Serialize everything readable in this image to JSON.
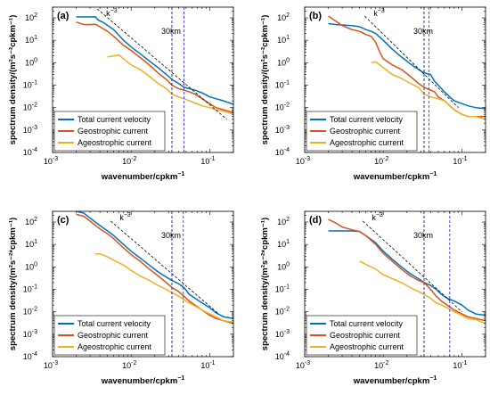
{
  "figure": {
    "colors": {
      "total": "#0072BD",
      "geo": "#D95319",
      "ageo": "#EDB120",
      "slope_line": "#000000",
      "line_30km": "#1a1a80",
      "line_blue": "#3b3bff"
    }
  },
  "chart_data": [
    {
      "type": "line",
      "panel_label": "(a)",
      "xlabel": "wavenumber/cpkm",
      "xlabel_sup": "−1",
      "ylabel": "spectrum density/(m²s⁻²cpkm⁻¹)",
      "x_scale": "log",
      "y_scale": "log",
      "xlim": [
        0.001,
        0.2
      ],
      "ylim": [
        0.0001,
        300
      ],
      "x_ticks": [
        0.001,
        0.01,
        0.1
      ],
      "x_tick_labels": [
        "10",
        "10",
        "10"
      ],
      "x_tick_exponents": [
        "-3",
        "-2",
        "-1"
      ],
      "y_ticks": [
        0.0001,
        0.001,
        0.01,
        0.1,
        1,
        10,
        100
      ],
      "y_tick_labels": [
        "10",
        "10",
        "10",
        "10",
        "10",
        "10",
        "10"
      ],
      "y_tick_exponents": [
        "-4",
        "-3",
        "-2",
        "-1",
        "0",
        "1",
        "2"
      ],
      "slope_label": "k",
      "slope_label_exp": "−3",
      "slope_line": {
        "x": [
          0.0037,
          0.165
        ],
        "y": [
          250,
          0.003
        ]
      },
      "annotation": "30km",
      "vlines": [
        0.033,
        0.047
      ],
      "legend": [
        "Total current velocity",
        "Geostrophic current",
        "Ageostrophic current"
      ],
      "legend_position": "lower-left",
      "series": [
        {
          "name": "Total current velocity",
          "key": "total",
          "x": [
            0.002,
            0.0025,
            0.003,
            0.0035,
            0.0038,
            0.0045,
            0.006,
            0.008,
            0.01,
            0.013,
            0.017,
            0.022,
            0.028,
            0.033,
            0.04,
            0.047,
            0.055,
            0.065,
            0.08,
            0.1,
            0.12,
            0.15,
            0.2
          ],
          "y": [
            110,
            110,
            110,
            112,
            80,
            60,
            30,
            10,
            5,
            2.5,
            1.2,
            0.6,
            0.3,
            0.18,
            0.12,
            0.08,
            0.07,
            0.06,
            0.045,
            0.03,
            0.025,
            0.02,
            0.014
          ]
        },
        {
          "name": "Geostrophic current",
          "key": "geo",
          "x": [
            0.002,
            0.0025,
            0.003,
            0.0035,
            0.004,
            0.005,
            0.006,
            0.008,
            0.01,
            0.013,
            0.017,
            0.022,
            0.028,
            0.033,
            0.04,
            0.047,
            0.055,
            0.065,
            0.08,
            0.1,
            0.12,
            0.15,
            0.2
          ],
          "y": [
            65,
            50,
            50,
            52,
            40,
            25,
            15,
            6,
            3.5,
            1.7,
            0.8,
            0.35,
            0.18,
            0.1,
            0.07,
            0.06,
            0.05,
            0.04,
            0.025,
            0.015,
            0.01,
            0.008,
            0.006
          ]
        },
        {
          "name": "Ageostrophic current",
          "key": "ageo",
          "x": [
            0.005,
            0.006,
            0.007,
            0.008,
            0.01,
            0.013,
            0.017,
            0.022,
            0.028,
            0.033,
            0.04,
            0.047,
            0.055,
            0.065,
            0.08,
            0.1,
            0.12,
            0.15,
            0.2
          ],
          "y": [
            1.8,
            2.0,
            2.2,
            1.5,
            0.8,
            0.5,
            0.25,
            0.12,
            0.07,
            0.04,
            0.03,
            0.025,
            0.02,
            0.016,
            0.012,
            0.01,
            0.008,
            0.007,
            0.005
          ]
        }
      ]
    },
    {
      "type": "line",
      "panel_label": "(b)",
      "xlabel": "wavenumber/cpkm",
      "xlabel_sup": "−1",
      "ylabel": "spectrum density/(m²s⁻²cpkm⁻¹)",
      "x_scale": "log",
      "y_scale": "log",
      "xlim": [
        0.001,
        0.2
      ],
      "ylim": [
        0.0001,
        300
      ],
      "x_ticks": [
        0.001,
        0.01,
        0.1
      ],
      "x_tick_labels": [
        "10",
        "10",
        "10"
      ],
      "x_tick_exponents": [
        "-3",
        "-2",
        "-1"
      ],
      "y_ticks": [
        0.0001,
        0.001,
        0.01,
        0.1,
        1,
        10,
        100
      ],
      "y_tick_labels": [
        "10",
        "10",
        "10",
        "10",
        "10",
        "10",
        "10"
      ],
      "y_tick_exponents": [
        "-4",
        "-3",
        "-2",
        "-1",
        "0",
        "1",
        "2"
      ],
      "slope_label": "k",
      "slope_label_exp": "−3",
      "slope_line": {
        "x": [
          0.0058,
          0.09
        ],
        "y": [
          120,
          0.01
        ]
      },
      "annotation": "30km",
      "vlines": [
        0.033,
        0.038
      ],
      "legend": [
        "Total current velocity",
        "Geostrophic current",
        "Ageostrophic current"
      ],
      "legend_position": "lower-left",
      "series": [
        {
          "name": "Total current velocity",
          "key": "total",
          "x": [
            0.002,
            0.0025,
            0.003,
            0.004,
            0.005,
            0.006,
            0.007,
            0.008,
            0.01,
            0.013,
            0.017,
            0.022,
            0.028,
            0.033,
            0.04,
            0.045,
            0.05,
            0.06,
            0.07,
            0.08,
            0.1,
            0.12,
            0.15,
            0.2
          ],
          "y": [
            55,
            50,
            48,
            45,
            40,
            30,
            25,
            20,
            10,
            4,
            1.8,
            0.9,
            0.5,
            0.35,
            0.3,
            0.15,
            0.1,
            0.05,
            0.03,
            0.02,
            0.015,
            0.012,
            0.01,
            0.009
          ]
        },
        {
          "name": "Geostrophic current",
          "key": "geo",
          "x": [
            0.002,
            0.0025,
            0.003,
            0.004,
            0.005,
            0.006,
            0.007,
            0.008,
            0.009,
            0.01,
            0.013,
            0.017,
            0.022,
            0.028,
            0.033,
            0.04,
            0.045,
            0.05,
            0.06,
            0.07,
            0.08,
            0.1,
            0.12,
            0.15,
            0.2
          ],
          "y": [
            120,
            70,
            45,
            30,
            25,
            18,
            15,
            8,
            3,
            1.5,
            0.8,
            0.5,
            0.25,
            0.12,
            0.08,
            0.06,
            0.05,
            0.03,
            0.02,
            0.012,
            0.008,
            0.005,
            0.004,
            0.004,
            0.004
          ]
        },
        {
          "name": "Ageostrophic current",
          "key": "ageo",
          "x": [
            0.007,
            0.008,
            0.01,
            0.013,
            0.017,
            0.022,
            0.028,
            0.033,
            0.04,
            0.05,
            0.06,
            0.07,
            0.08,
            0.1,
            0.12,
            0.15,
            0.2
          ],
          "y": [
            1.0,
            1.1,
            0.6,
            0.3,
            0.2,
            0.12,
            0.08,
            0.04,
            0.03,
            0.025,
            0.02,
            0.012,
            0.008,
            0.005,
            0.004,
            0.004,
            0.003
          ]
        }
      ]
    },
    {
      "type": "line",
      "panel_label": "(c)",
      "xlabel": "wavenumber/cpkm",
      "xlabel_sup": "−1",
      "ylabel": "spectrum density/(m²s⁻²*cpkm⁻¹)",
      "x_scale": "log",
      "y_scale": "log",
      "xlim": [
        0.001,
        0.2
      ],
      "ylim": [
        0.0001,
        300
      ],
      "x_ticks": [
        0.001,
        0.01,
        0.1
      ],
      "x_tick_labels": [
        "10",
        "10",
        "10"
      ],
      "x_tick_exponents": [
        "-3",
        "-2",
        "-1"
      ],
      "y_ticks": [
        0.0001,
        0.001,
        0.01,
        0.1,
        1,
        10,
        100
      ],
      "y_tick_labels": [
        "10",
        "10",
        "10",
        "10",
        "10",
        "10",
        "10"
      ],
      "y_tick_exponents": [
        "-4",
        "-3",
        "-2",
        "-1",
        "0",
        "1",
        "2"
      ],
      "slope_label": "k",
      "slope_label_exp": "−3",
      "slope_line": {
        "x": [
          0.0055,
          0.13
        ],
        "y": [
          110,
          0.008
        ]
      },
      "annotation": "30km",
      "vlines": [
        0.033,
        0.046
      ],
      "legend": [
        "Total current velocity",
        "Geostrophic current",
        "Ageostrophic current"
      ],
      "legend_position": "lower-left",
      "series": [
        {
          "name": "Total current velocity",
          "key": "total",
          "x": [
            0.002,
            0.0025,
            0.003,
            0.004,
            0.005,
            0.006,
            0.008,
            0.01,
            0.013,
            0.017,
            0.022,
            0.028,
            0.033,
            0.04,
            0.047,
            0.055,
            0.065,
            0.08,
            0.1,
            0.12,
            0.15,
            0.2
          ],
          "y": [
            300,
            250,
            150,
            70,
            40,
            25,
            10,
            5,
            2.5,
            1.2,
            0.6,
            0.35,
            0.25,
            0.18,
            0.12,
            0.06,
            0.04,
            0.025,
            0.015,
            0.009,
            0.006,
            0.005
          ]
        },
        {
          "name": "Geostrophic current",
          "key": "geo",
          "x": [
            0.002,
            0.0025,
            0.003,
            0.004,
            0.005,
            0.006,
            0.008,
            0.01,
            0.013,
            0.017,
            0.022,
            0.028,
            0.033,
            0.04,
            0.047,
            0.055,
            0.065,
            0.08,
            0.1,
            0.12,
            0.15,
            0.2
          ],
          "y": [
            220,
            180,
            110,
            50,
            30,
            18,
            7,
            3.5,
            1.8,
            0.8,
            0.4,
            0.2,
            0.12,
            0.08,
            0.05,
            0.03,
            0.02,
            0.012,
            0.007,
            0.005,
            0.004,
            0.003
          ]
        },
        {
          "name": "Ageostrophic current",
          "key": "ageo",
          "x": [
            0.0035,
            0.004,
            0.005,
            0.006,
            0.008,
            0.01,
            0.013,
            0.017,
            0.022,
            0.028,
            0.033,
            0.04,
            0.047,
            0.055,
            0.065,
            0.08,
            0.1,
            0.12,
            0.15,
            0.2
          ],
          "y": [
            3.8,
            3.8,
            2.8,
            2.0,
            1.2,
            0.7,
            0.4,
            0.25,
            0.15,
            0.1,
            0.07,
            0.05,
            0.035,
            0.025,
            0.018,
            0.012,
            0.008,
            0.006,
            0.004,
            0.0035
          ]
        }
      ]
    },
    {
      "type": "line",
      "panel_label": "(d)",
      "xlabel": "wavenumber/cpkm",
      "xlabel_sup": "−1",
      "ylabel": "spectrum density/(m²s⁻²*cpkm⁻¹)",
      "x_scale": "log",
      "y_scale": "log",
      "xlim": [
        0.001,
        0.2
      ],
      "ylim": [
        0.0001,
        300
      ],
      "x_ticks": [
        0.001,
        0.01,
        0.1
      ],
      "x_tick_labels": [
        "10",
        "10",
        "10"
      ],
      "x_tick_exponents": [
        "-3",
        "-2",
        "-1"
      ],
      "y_ticks": [
        0.0001,
        0.001,
        0.01,
        0.1,
        1,
        10,
        100
      ],
      "y_tick_labels": [
        "10",
        "10",
        "10",
        "10",
        "10",
        "10",
        "10"
      ],
      "y_tick_exponents": [
        "-4",
        "-3",
        "-2",
        "-1",
        "0",
        "1",
        "2"
      ],
      "slope_label": "k",
      "slope_label_exp": "−3",
      "slope_line": {
        "x": [
          0.0055,
          0.1
        ],
        "y": [
          110,
          0.01
        ]
      },
      "annotation": "30km",
      "vlines": [
        0.033,
        0.07
      ],
      "legend": [
        "Total current velocity",
        "Geostrophic current",
        "Ageostrophic current"
      ],
      "legend_position": "lower-left",
      "series": [
        {
          "name": "Total current velocity",
          "key": "total",
          "x": [
            0.002,
            0.0025,
            0.003,
            0.004,
            0.005,
            0.006,
            0.008,
            0.01,
            0.013,
            0.017,
            0.022,
            0.028,
            0.033,
            0.04,
            0.047,
            0.055,
            0.065,
            0.08,
            0.1,
            0.12,
            0.15,
            0.2
          ],
          "y": [
            40,
            40,
            40,
            40,
            38,
            25,
            12,
            5,
            2.2,
            1.0,
            0.5,
            0.3,
            0.2,
            0.15,
            0.1,
            0.06,
            0.04,
            0.03,
            0.02,
            0.012,
            0.008,
            0.007
          ]
        },
        {
          "name": "Geostrophic current",
          "key": "geo",
          "x": [
            0.002,
            0.0025,
            0.003,
            0.004,
            0.005,
            0.006,
            0.008,
            0.01,
            0.013,
            0.017,
            0.022,
            0.028,
            0.033,
            0.04,
            0.047,
            0.055,
            0.065,
            0.08,
            0.1,
            0.12,
            0.15,
            0.2
          ],
          "y": [
            130,
            90,
            60,
            45,
            38,
            25,
            10,
            4,
            1.8,
            0.8,
            0.4,
            0.25,
            0.2,
            0.1,
            0.05,
            0.03,
            0.02,
            0.012,
            0.008,
            0.006,
            0.005,
            0.004
          ]
        },
        {
          "name": "Ageostrophic current",
          "key": "ageo",
          "x": [
            0.005,
            0.006,
            0.008,
            0.01,
            0.013,
            0.017,
            0.022,
            0.028,
            0.033,
            0.04,
            0.047,
            0.055,
            0.065,
            0.08,
            0.1,
            0.12,
            0.15,
            0.2
          ],
          "y": [
            1.8,
            1.3,
            0.8,
            0.45,
            0.3,
            0.2,
            0.12,
            0.08,
            0.06,
            0.04,
            0.025,
            0.02,
            0.015,
            0.01,
            0.007,
            0.005,
            0.0045,
            0.003
          ]
        }
      ]
    }
  ]
}
